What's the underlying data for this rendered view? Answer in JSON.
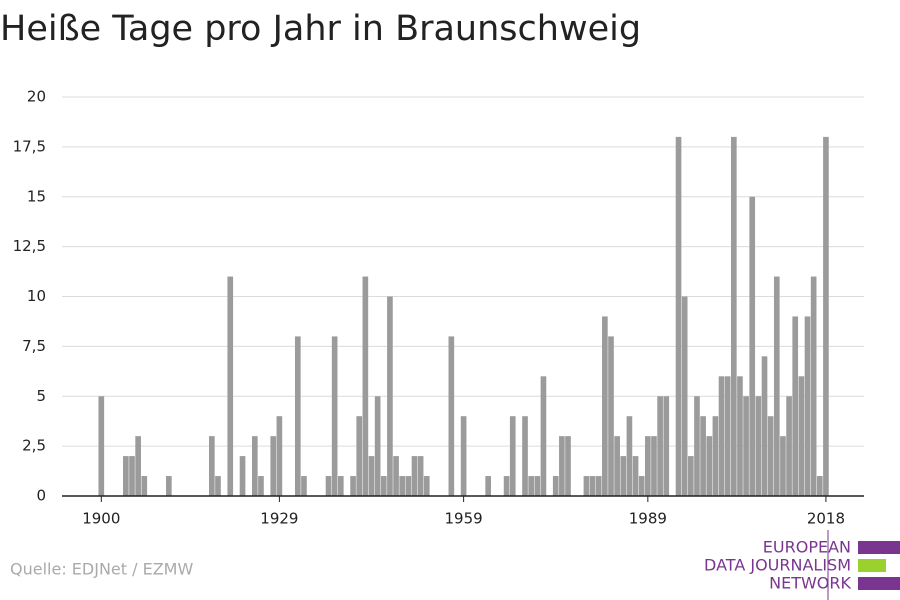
{
  "chart_data": {
    "type": "bar",
    "title": "Heiße Tage pro Jahr in Braunschweig",
    "source": "Quelle: EDJNet / EZMW",
    "logo": [
      "EUROPEAN",
      "DATA JOURNALISM",
      "NETWORK"
    ],
    "color": "#9b9b9b",
    "x": [
      1900,
      1901,
      1902,
      1903,
      1904,
      1905,
      1906,
      1907,
      1908,
      1909,
      1910,
      1911,
      1912,
      1913,
      1914,
      1915,
      1916,
      1917,
      1918,
      1919,
      1920,
      1921,
      1922,
      1923,
      1924,
      1925,
      1926,
      1927,
      1928,
      1929,
      1930,
      1931,
      1932,
      1933,
      1934,
      1935,
      1936,
      1937,
      1938,
      1939,
      1940,
      1941,
      1942,
      1943,
      1944,
      1945,
      1946,
      1947,
      1948,
      1949,
      1950,
      1951,
      1952,
      1953,
      1954,
      1955,
      1956,
      1957,
      1958,
      1959,
      1960,
      1961,
      1962,
      1963,
      1964,
      1965,
      1966,
      1967,
      1968,
      1969,
      1970,
      1971,
      1972,
      1973,
      1974,
      1975,
      1976,
      1977,
      1978,
      1979,
      1980,
      1981,
      1982,
      1983,
      1984,
      1985,
      1986,
      1987,
      1988,
      1989,
      1990,
      1991,
      1992,
      1993,
      1994,
      1995,
      1996,
      1997,
      1998,
      1999,
      2000,
      2001,
      2002,
      2003,
      2004,
      2005,
      2006,
      2007,
      2008,
      2009,
      2010,
      2011,
      2012,
      2013,
      2014,
      2015,
      2016,
      2017,
      2018
    ],
    "values": [
      5,
      0,
      0,
      0,
      2,
      2,
      3,
      1,
      0,
      0,
      0,
      1,
      0,
      0,
      0,
      0,
      0,
      0,
      3,
      1,
      0,
      11,
      0,
      2,
      0,
      3,
      1,
      0,
      3,
      4,
      0,
      0,
      8,
      1,
      0,
      0,
      0,
      1,
      8,
      1,
      0,
      1,
      4,
      11,
      2,
      5,
      1,
      10,
      2,
      1,
      1,
      2,
      2,
      1,
      0,
      0,
      0,
      8,
      0,
      4,
      0,
      0,
      0,
      1,
      0,
      0,
      1,
      4,
      0,
      4,
      1,
      1,
      6,
      0,
      1,
      3,
      3,
      0,
      0,
      1,
      1,
      1,
      9,
      8,
      3,
      2,
      4,
      2,
      1,
      3,
      3,
      5,
      5,
      0,
      18,
      10,
      2,
      5,
      4,
      3,
      4,
      6,
      6,
      18,
      6,
      5,
      15,
      5,
      7,
      4,
      11,
      3,
      5,
      9,
      6,
      9,
      11,
      1,
      18
    ],
    "xlim": [
      1893.6,
      2024.2
    ],
    "xticks": [
      1900,
      1929,
      1959,
      1989,
      2018
    ],
    "ylim": [
      0,
      20
    ],
    "yticks": [
      0,
      {
        "value": 2.5,
        "label": "2,5"
      },
      5,
      {
        "value": 7.5,
        "label": "7,5"
      },
      10,
      {
        "value": 12.5,
        "label": "12,5"
      },
      15,
      {
        "value": 17.5,
        "label": "17,5"
      },
      20
    ],
    "grid": true
  }
}
